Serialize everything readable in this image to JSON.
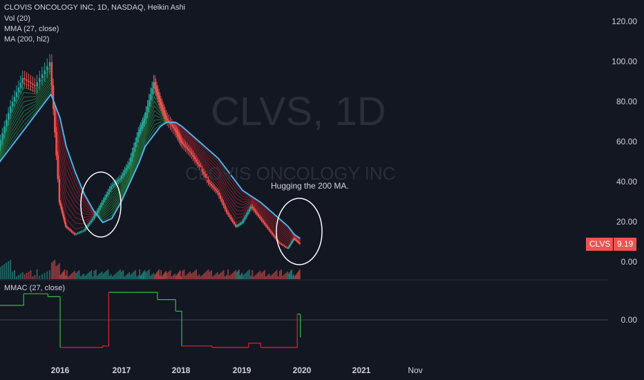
{
  "header": {
    "title": "CLOVIS ONCOLOGY INC, 1D, NASDAQ, Heikin Ashi",
    "indicators": [
      "Vol (20)",
      "MMA (27, close)",
      "MA (200, hl2)"
    ],
    "sub_indicator": "MMAC (27, close)"
  },
  "watermark": {
    "symbol": "CLVS, 1D",
    "name": "CLOVIS ONCOLOGY INC"
  },
  "price_tag": {
    "symbol": "CLVS",
    "value": "9.19"
  },
  "annotation": "Hugging the 200 MA.",
  "colors": {
    "background": "#131722",
    "up": "#26a69a",
    "down": "#ef5350",
    "ma200": "#4fb3e8",
    "mma_up": "#2fbd4f",
    "mma_down": "#e0242e",
    "circle": "#ffffff"
  },
  "chart_data": [
    {
      "type": "line",
      "title": "CLOVIS ONCOLOGY INC, 1D, NASDAQ, Heikin Ashi",
      "y_axis_labels": [
        "120.00",
        "100.00",
        "80.00",
        "60.00",
        "40.00",
        "20.00",
        "0.00"
      ],
      "x_axis_labels": [
        "2016",
        "2017",
        "2018",
        "2019",
        "2020",
        "2021",
        "Nov"
      ],
      "ylim": [
        0,
        120
      ],
      "x": [
        2015.0,
        2015.2,
        2015.4,
        2015.6,
        2015.85,
        2016.0,
        2016.1,
        2016.25,
        2016.4,
        2016.55,
        2016.7,
        2016.85,
        2017.0,
        2017.15,
        2017.3,
        2017.4,
        2017.55,
        2017.65,
        2017.75,
        2017.9,
        2018.0,
        2018.15,
        2018.3,
        2018.45,
        2018.6,
        2018.75,
        2018.9,
        2019.0,
        2019.15,
        2019.3,
        2019.45,
        2019.6,
        2019.75,
        2019.85,
        2019.95
      ],
      "series": [
        {
          "values": [
            58,
            78,
            92,
            88,
            100,
            30,
            18,
            14,
            16,
            22,
            30,
            38,
            42,
            50,
            65,
            72,
            90,
            80,
            72,
            66,
            60,
            55,
            48,
            40,
            35,
            25,
            18,
            20,
            28,
            22,
            16,
            10,
            7,
            12,
            9.19
          ]
        },
        {
          "name": "MA (200, hl2)",
          "values": [
            50,
            58,
            66,
            74,
            84,
            72,
            58,
            45,
            34,
            26,
            20,
            22,
            30,
            40,
            50,
            58,
            64,
            68,
            70,
            70,
            68,
            64,
            60,
            56,
            52,
            46,
            40,
            36,
            33,
            30,
            26,
            22,
            18,
            14,
            12
          ]
        }
      ],
      "annotations": [
        "Hugging the 200 MA."
      ]
    },
    {
      "type": "line",
      "title": "MMAC (27, close)",
      "y_axis_labels": [
        "0.00"
      ],
      "x": [
        2015.0,
        2015.4,
        2015.8,
        2016.0,
        2016.4,
        2016.7,
        2016.8,
        2017.2,
        2017.6,
        2017.9,
        2018.0,
        2018.5,
        2018.9,
        2019.1,
        2019.3,
        2019.7,
        2019.9,
        2019.95
      ],
      "series": [
        {
          "values": [
            0.5,
            0.9,
            0.8,
            -0.95,
            -0.95,
            -0.9,
            0.95,
            0.95,
            0.7,
            0.3,
            -0.9,
            -0.95,
            -0.95,
            -0.8,
            -0.95,
            -0.95,
            0.2,
            -0.6
          ]
        }
      ]
    }
  ]
}
